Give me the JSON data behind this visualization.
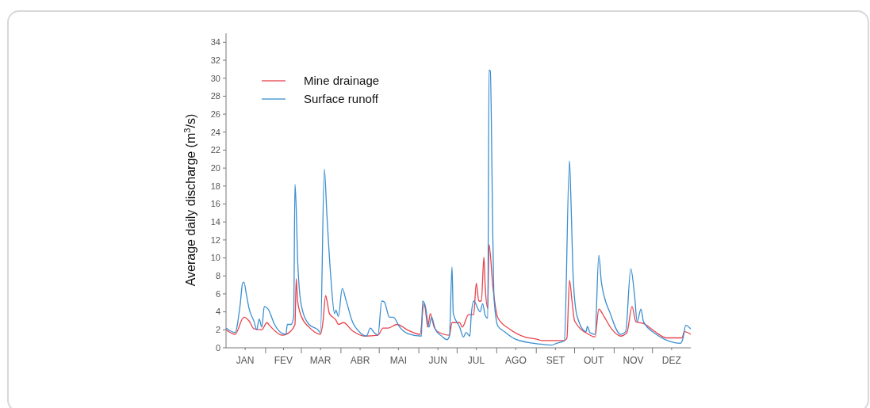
{
  "chart_data": {
    "type": "line",
    "ylabel": "Average daily discharge (m$^{3}$/s)",
    "xlim": [
      "--01-01",
      "--12-31"
    ],
    "ylim": [
      0,
      35
    ],
    "xticks": [
      {
        "value": "--01-16",
        "label": "JAN"
      },
      {
        "value": "--02-01",
        "label": null
      },
      {
        "value": "--02-15",
        "label": "FEV"
      },
      {
        "value": "--03-01",
        "label": null
      },
      {
        "value": "--03-16",
        "label": "MAR"
      },
      {
        "value": "--04-01",
        "label": null
      },
      {
        "value": "--04-16",
        "label": "ABR"
      },
      {
        "value": "--05-01",
        "label": null
      },
      {
        "value": "--05-16",
        "label": "MAI"
      },
      {
        "value": "--06-01",
        "label": null
      },
      {
        "value": "--06-16",
        "label": "JUN"
      },
      {
        "value": "--07-01",
        "label": null
      },
      {
        "value": "--07-16",
        "label": "JUL"
      },
      {
        "value": "--08-01",
        "label": null
      },
      {
        "value": "--08-16",
        "label": "AGO"
      },
      {
        "value": "--09-01",
        "label": null
      },
      {
        "value": "--09-16",
        "label": "SET"
      },
      {
        "value": "--10-01",
        "label": null
      },
      {
        "value": "--10-16",
        "label": "OUT"
      },
      {
        "value": "--11-01",
        "label": null
      },
      {
        "value": "--11-16",
        "label": "NOV"
      },
      {
        "value": "--12-01",
        "label": null
      },
      {
        "value": "--12-16",
        "label": "DEZ"
      }
    ],
    "yticks": [
      0,
      2,
      4,
      6,
      8,
      10,
      12,
      14,
      16,
      18,
      20,
      22,
      24,
      26,
      28,
      30,
      32,
      34
    ],
    "grid": false,
    "legend": "top left",
    "marker": "none",
    "line_style": "solid",
    "series": [
      {
        "name": "Mine drainage",
        "color": "#e8424b",
        "x": [
          "--01-01",
          "--01-08",
          "--01-15",
          "--01-19",
          "--01-23",
          "--01-29",
          "--02-02",
          "--02-04",
          "--02-14",
          "--02-21",
          "--02-24",
          "--02-25",
          "--02-26",
          "--03-01",
          "--03-07",
          "--03-16",
          "--03-18",
          "--03-20",
          "--03-21",
          "--03-23",
          "--03-28",
          "--03-30",
          "--04-03",
          "--04-10",
          "--04-20",
          "--04-30",
          "--05-04",
          "--05-08",
          "--05-15",
          "--05-23",
          "--06-02",
          "--06-05",
          "--06-06",
          "--06-08",
          "--06-10",
          "--06-13",
          "--06-17",
          "--06-25",
          "--06-27",
          "--07-03",
          "--07-05",
          "--07-10",
          "--07-14",
          "--07-16",
          "--07-18",
          "--07-20",
          "--07-22",
          "--07-23",
          "--07-25",
          "--07-26",
          "--07-29",
          "--08-02",
          "--08-11",
          "--08-23",
          "--09-03",
          "--09-05",
          "--09-23",
          "--09-25",
          "--09-27",
          "--09-29",
          "--10-01",
          "--10-12",
          "--10-17",
          "--10-20",
          "--10-24",
          "--10-30",
          "--11-06",
          "--11-11",
          "--11-15",
          "--11-18",
          "--11-24",
          "--12-04",
          "--12-12",
          "--12-24",
          "--12-26",
          "--12-31"
        ],
        "values": [
          2.0,
          1.5,
          3.4,
          3.0,
          2.1,
          2.0,
          2.8,
          2.5,
          1.4,
          1.9,
          2.6,
          7.7,
          5.3,
          3.5,
          2.3,
          1.5,
          3.0,
          5.8,
          5.3,
          3.8,
          3.1,
          2.6,
          2.8,
          1.9,
          1.3,
          1.4,
          2.2,
          2.2,
          2.6,
          2.0,
          1.5,
          4.9,
          4.4,
          2.3,
          3.8,
          2.3,
          1.7,
          1.4,
          2.8,
          2.8,
          2.3,
          3.7,
          3.7,
          7.2,
          5.2,
          5.2,
          10.1,
          6.8,
          4.4,
          11.5,
          6.8,
          3.3,
          2.1,
          1.2,
          0.9,
          0.8,
          0.8,
          1.1,
          7.5,
          5.2,
          3.0,
          1.5,
          1.2,
          4.3,
          3.5,
          2.1,
          1.3,
          1.7,
          4.6,
          2.9,
          2.7,
          1.7,
          1.1,
          1.1,
          1.8,
          1.5
        ]
      },
      {
        "name": "Surface runoff",
        "color": "#3a8fd0",
        "x": [
          "--01-01",
          "--01-08",
          "--01-12",
          "--01-14",
          "--01-15",
          "--01-17",
          "--01-19",
          "--01-23",
          "--01-25",
          "--01-27",
          "--01-29",
          "--01-31",
          "--02-03",
          "--02-08",
          "--02-14",
          "--02-17",
          "--02-18",
          "--02-21",
          "--02-23",
          "--02-24",
          "--02-25",
          "--02-26",
          "--03-01",
          "--03-07",
          "--03-14",
          "--03-16",
          "--03-19",
          "--03-21",
          "--03-24",
          "--03-27",
          "--03-28",
          "--03-30",
          "--04-02",
          "--04-05",
          "--04-10",
          "--04-16",
          "--04-21",
          "--04-24",
          "--04-27",
          "--04-30",
          "--05-03",
          "--05-05",
          "--05-09",
          "--05-12",
          "--05-17",
          "--05-23",
          "--06-03",
          "--06-04",
          "--06-06",
          "--06-09",
          "--06-11",
          "--06-14",
          "--06-19",
          "--06-23",
          "--06-25",
          "--06-27",
          "--06-28",
          "--07-03",
          "--07-06",
          "--07-08",
          "--07-11",
          "--07-12",
          "--07-14",
          "--07-19",
          "--07-21",
          "--07-23",
          "--07-25",
          "--07-26",
          "--07-27",
          "--07-29",
          "--07-30",
          "--08-02",
          "--08-07",
          "--08-15",
          "--08-30",
          "--09-05",
          "--09-13",
          "--09-17",
          "--09-23",
          "--09-27",
          "--09-28",
          "--09-30",
          "--10-03",
          "--10-10",
          "--10-11",
          "--10-13",
          "--10-17",
          "--10-20",
          "--10-22",
          "--10-29",
          "--11-06",
          "--11-10",
          "--11-14",
          "--11-17",
          "--11-19",
          "--11-22",
          "--11-24",
          "--12-04",
          "--12-15",
          "--12-23",
          "--12-25",
          "--12-27",
          "--12-31"
        ],
        "values": [
          2.2,
          1.7,
          4.7,
          7.2,
          7.3,
          5.9,
          4.4,
          2.9,
          2.0,
          3.2,
          2.3,
          4.6,
          4.3,
          2.6,
          1.6,
          1.5,
          2.6,
          2.6,
          3.5,
          18.2,
          15.4,
          10.1,
          4.7,
          2.6,
          2.0,
          1.7,
          19.9,
          14.8,
          8.0,
          3.8,
          4.2,
          3.5,
          6.6,
          5.3,
          2.9,
          1.7,
          1.3,
          2.2,
          1.7,
          1.4,
          5.2,
          5.1,
          3.4,
          3.4,
          2.3,
          1.6,
          1.3,
          5.2,
          4.7,
          2.3,
          3.4,
          2.0,
          1.3,
          0.9,
          1.3,
          9.0,
          3.8,
          2.3,
          1.2,
          1.7,
          1.3,
          3.5,
          5.2,
          4.0,
          4.9,
          3.6,
          3.3,
          30.9,
          30.8,
          12.1,
          5.3,
          2.4,
          1.8,
          1.0,
          0.5,
          0.4,
          0.3,
          0.5,
          0.8,
          20.8,
          17.1,
          7.6,
          3.5,
          1.8,
          2.4,
          1.7,
          1.5,
          10.3,
          7.3,
          3.8,
          1.5,
          1.8,
          8.8,
          5.8,
          2.9,
          4.3,
          2.9,
          1.5,
          0.7,
          0.5,
          1.1,
          2.5,
          2.1
        ]
      }
    ]
  }
}
